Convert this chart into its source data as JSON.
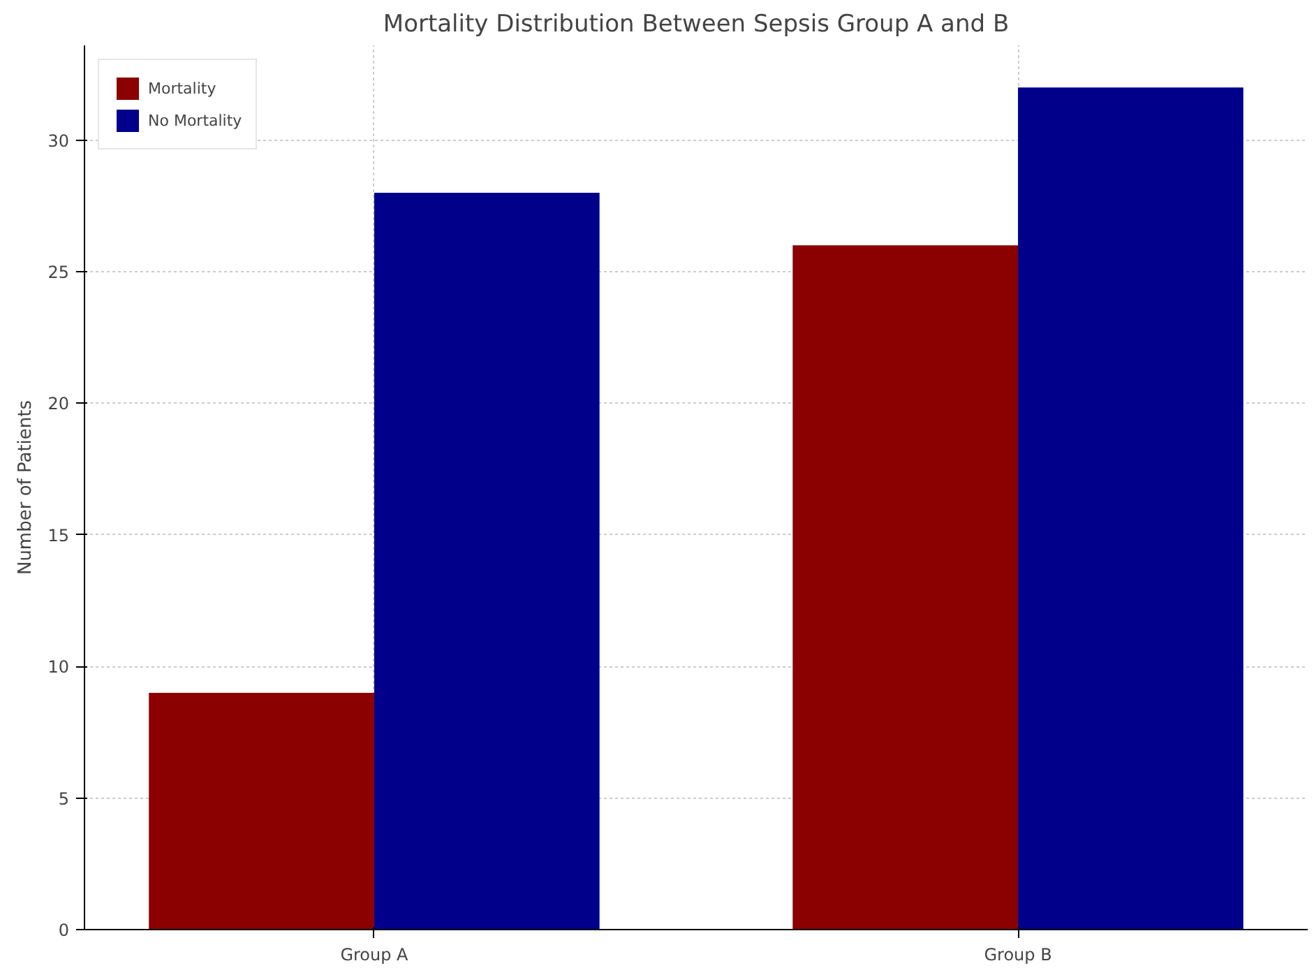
{
  "chart_data": {
    "type": "bar",
    "title": "Mortality Distribution Between Sepsis Group A and B",
    "ylabel": "Number of Patients",
    "categories": [
      "Group A",
      "Group B"
    ],
    "series": [
      {
        "name": "Mortality",
        "color": "#8b0000",
        "values": [
          9,
          26
        ]
      },
      {
        "name": "No Mortality",
        "color": "#00008b",
        "values": [
          28,
          32
        ]
      }
    ],
    "ylim": [
      0,
      33.6
    ],
    "yticks": [
      0,
      5,
      10,
      15,
      20,
      25,
      30
    ],
    "grid": true,
    "legend": "top left"
  }
}
